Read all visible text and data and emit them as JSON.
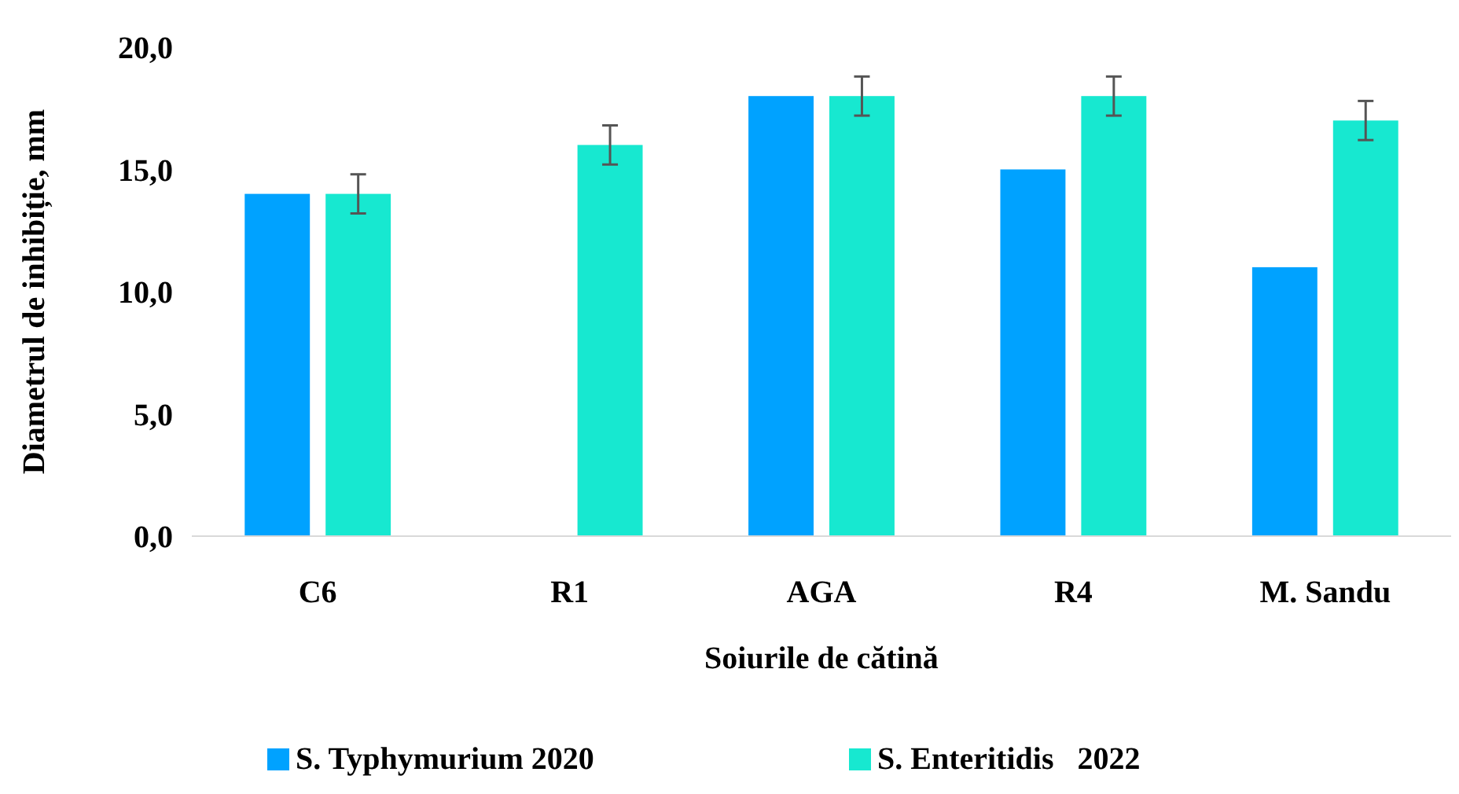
{
  "chart_data": {
    "type": "bar",
    "xlabel": "Soiurile de cătină",
    "ylabel": "Diametrul de inhibiție, mm",
    "categories": [
      "C6",
      "R1",
      "AGA",
      "R4",
      "M. Sandu"
    ],
    "series": [
      {
        "name": "S. Typhymurium 2020",
        "color": "#00a2ff",
        "values": [
          14,
          null,
          18,
          15,
          11
        ]
      },
      {
        "name": "S. Enteritidis   2022",
        "color": "#17e8d0",
        "values": [
          14,
          16,
          18,
          18,
          17
        ],
        "errors": [
          0.8,
          0.8,
          0.8,
          0.8,
          0.8
        ]
      }
    ],
    "ylim": [
      0,
      20
    ],
    "yticks": [
      {
        "value": 0,
        "label": "0,0"
      },
      {
        "value": 5,
        "label": "5,0"
      },
      {
        "value": 10,
        "label": "10,0"
      },
      {
        "value": 15,
        "label": "15,0"
      },
      {
        "value": 20,
        "label": "20,0"
      }
    ],
    "grid": false,
    "legend": "bottom"
  }
}
